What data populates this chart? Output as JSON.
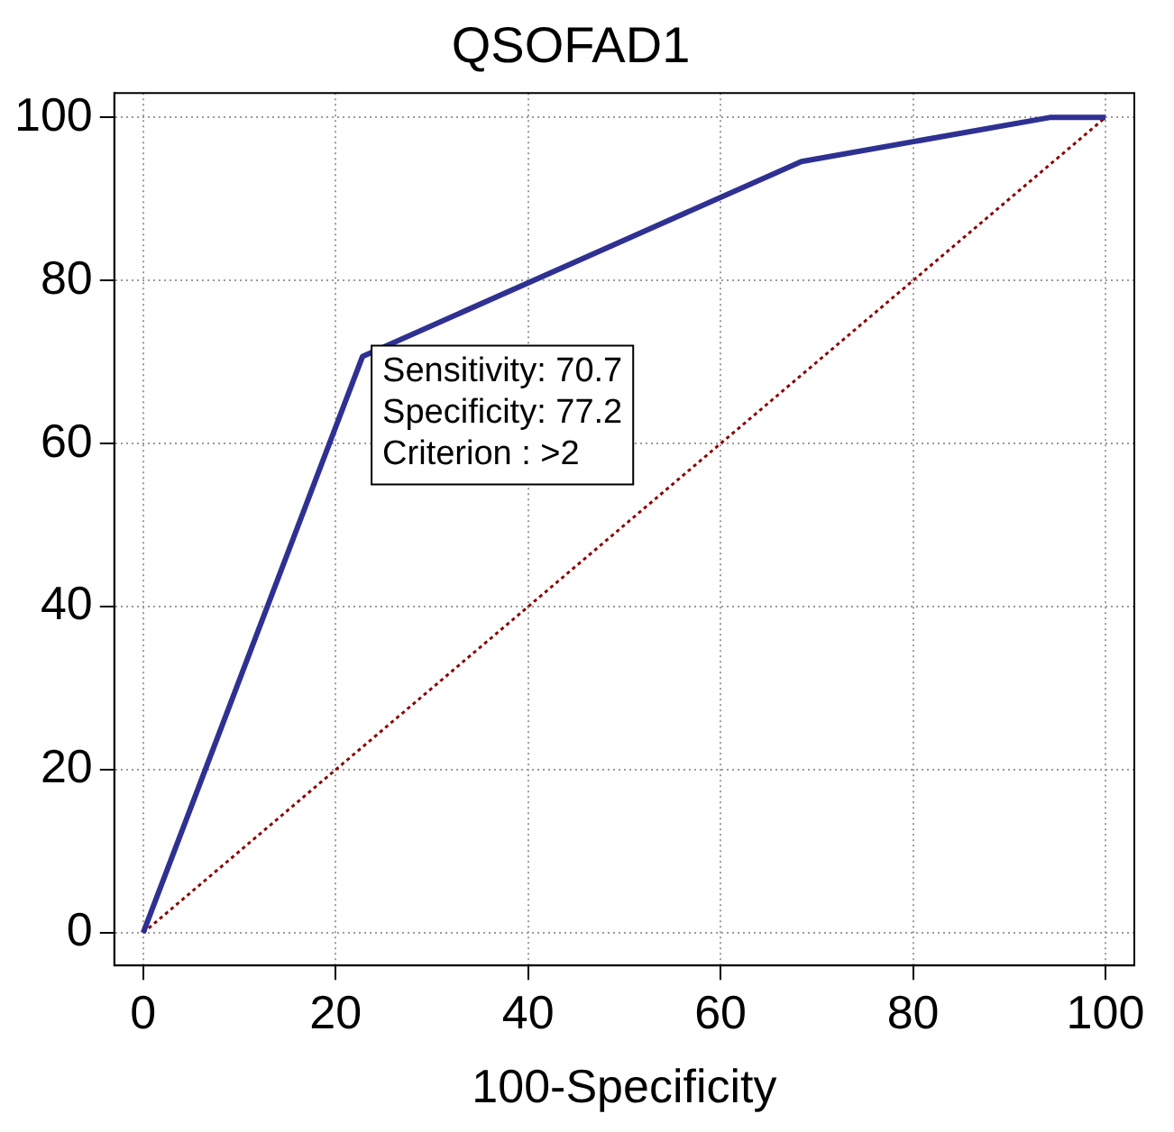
{
  "chart_data": {
    "type": "line",
    "title": "QSOFAD1",
    "xlabel": "100-Specificity",
    "xlim": [
      -3,
      103
    ],
    "ylim": [
      -4,
      103
    ],
    "xticks": [
      0,
      20,
      40,
      60,
      80,
      100
    ],
    "yticks": [
      0,
      20,
      40,
      60,
      80,
      100
    ],
    "grid": true,
    "legend": false,
    "marker": "none",
    "series": [
      {
        "color": "#2e3192",
        "line_style": "solid",
        "x": [
          0,
          22.8,
          68.4,
          94.2,
          100
        ],
        "values": [
          0,
          70.7,
          94.6,
          100,
          100
        ]
      },
      {
        "color": "#8b0000",
        "line_style": "dotted",
        "x": [
          0,
          100
        ],
        "values": [
          0,
          100
        ]
      }
    ],
    "annotations": [
      {
        "text": "Sensitivity: 70.7\nSpecificity: 77.2\nCriterion : >2",
        "x": 22.8,
        "y": 70.7
      }
    ]
  }
}
